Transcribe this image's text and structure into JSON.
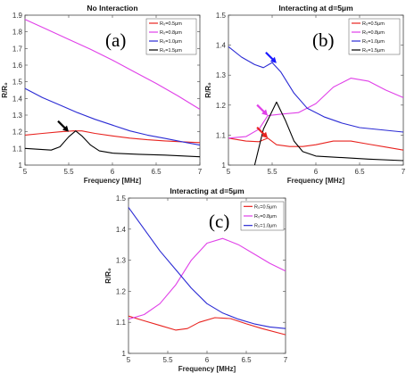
{
  "chart_data": [
    {
      "type": "line",
      "panel_label": "(a)",
      "title": "No Interaction",
      "xlabel": "Frequency [MHz]",
      "ylabel": "R/R₀",
      "xlim": [
        5,
        7
      ],
      "ylim": [
        1.0,
        1.9
      ],
      "xticks": [
        "5",
        "5.5",
        "6",
        "6.5",
        "7"
      ],
      "yticks": [
        "1",
        "1.1",
        "1.2",
        "1.3",
        "1.4",
        "1.5",
        "1.6",
        "1.7",
        "1.8",
        "1.9"
      ],
      "legend_position": "top-right",
      "series": [
        {
          "name": "R₀=0.5μm",
          "color": "#e8231f",
          "points": [
            [
              5.0,
              1.18
            ],
            [
              5.2,
              1.19
            ],
            [
              5.4,
              1.2
            ],
            [
              5.55,
              1.205
            ],
            [
              5.65,
              1.205
            ],
            [
              5.8,
              1.19
            ],
            [
              6.0,
              1.175
            ],
            [
              6.2,
              1.162
            ],
            [
              6.4,
              1.152
            ],
            [
              6.6,
              1.145
            ],
            [
              6.8,
              1.14
            ],
            [
              7.0,
              1.135
            ]
          ]
        },
        {
          "name": "R₀=0.8μm",
          "color": "#e040e8",
          "points": [
            [
              5.0,
              1.875
            ],
            [
              5.25,
              1.815
            ],
            [
              5.5,
              1.755
            ],
            [
              5.75,
              1.695
            ],
            [
              6.0,
              1.63
            ],
            [
              6.25,
              1.56
            ],
            [
              6.5,
              1.49
            ],
            [
              6.75,
              1.415
            ],
            [
              7.0,
              1.335
            ]
          ]
        },
        {
          "name": "R₀=1.0μm",
          "color": "#2b2bd4",
          "points": [
            [
              5.0,
              1.46
            ],
            [
              5.2,
              1.405
            ],
            [
              5.4,
              1.36
            ],
            [
              5.6,
              1.315
            ],
            [
              5.8,
              1.275
            ],
            [
              6.0,
              1.24
            ],
            [
              6.2,
              1.205
            ],
            [
              6.4,
              1.18
            ],
            [
              6.6,
              1.16
            ],
            [
              6.8,
              1.14
            ],
            [
              7.0,
              1.12
            ]
          ]
        },
        {
          "name": "R₀=1.5μm",
          "color": "#000000",
          "points": [
            [
              5.0,
              1.1
            ],
            [
              5.3,
              1.09
            ],
            [
              5.4,
              1.11
            ],
            [
              5.5,
              1.17
            ],
            [
              5.58,
              1.205
            ],
            [
              5.65,
              1.175
            ],
            [
              5.75,
              1.12
            ],
            [
              5.85,
              1.085
            ],
            [
              6.0,
              1.072
            ],
            [
              6.3,
              1.065
            ],
            [
              6.6,
              1.06
            ],
            [
              7.0,
              1.05
            ]
          ]
        }
      ],
      "arrows": [
        {
          "color": "#000000",
          "points_to": [
            5.5,
            1.2
          ]
        }
      ]
    },
    {
      "type": "line",
      "panel_label": "(b)",
      "title": "Interacting at d=5μm",
      "xlabel": "Frequency [MHz]",
      "ylabel": "R/R₀",
      "xlim": [
        5,
        7
      ],
      "ylim": [
        1.0,
        1.5
      ],
      "xticks": [
        "5",
        "5.5",
        "6",
        "6.5",
        "7"
      ],
      "yticks": [
        "1",
        "1.1",
        "1.2",
        "1.3",
        "1.4",
        "1.5"
      ],
      "legend_position": "top-right",
      "series": [
        {
          "name": "R₀=0.5μm",
          "color": "#e8231f",
          "points": [
            [
              5.0,
              1.09
            ],
            [
              5.2,
              1.08
            ],
            [
              5.35,
              1.078
            ],
            [
              5.45,
              1.09
            ],
            [
              5.55,
              1.068
            ],
            [
              5.7,
              1.062
            ],
            [
              5.85,
              1.062
            ],
            [
              6.0,
              1.068
            ],
            [
              6.2,
              1.08
            ],
            [
              6.4,
              1.08
            ],
            [
              6.6,
              1.07
            ],
            [
              6.8,
              1.06
            ],
            [
              7.0,
              1.05
            ]
          ]
        },
        {
          "name": "R₀=0.8μm",
          "color": "#e040e8",
          "points": [
            [
              5.0,
              1.09
            ],
            [
              5.2,
              1.095
            ],
            [
              5.35,
              1.12
            ],
            [
              5.45,
              1.165
            ],
            [
              5.6,
              1.17
            ],
            [
              5.8,
              1.175
            ],
            [
              6.0,
              1.205
            ],
            [
              6.2,
              1.26
            ],
            [
              6.4,
              1.29
            ],
            [
              6.6,
              1.28
            ],
            [
              6.8,
              1.25
            ],
            [
              7.0,
              1.225
            ]
          ]
        },
        {
          "name": "R₀=1.0μm",
          "color": "#2b2bd4",
          "points": [
            [
              5.0,
              1.395
            ],
            [
              5.15,
              1.36
            ],
            [
              5.3,
              1.335
            ],
            [
              5.4,
              1.325
            ],
            [
              5.5,
              1.342
            ],
            [
              5.6,
              1.31
            ],
            [
              5.75,
              1.24
            ],
            [
              5.9,
              1.19
            ],
            [
              6.1,
              1.16
            ],
            [
              6.3,
              1.14
            ],
            [
              6.5,
              1.125
            ],
            [
              7.0,
              1.11
            ]
          ]
        },
        {
          "name": "R₀=1.5μm",
          "color": "#000000",
          "points": [
            [
              5.3,
              1.0
            ],
            [
              5.4,
              1.12
            ],
            [
              5.55,
              1.21
            ],
            [
              5.65,
              1.15
            ],
            [
              5.75,
              1.08
            ],
            [
              5.85,
              1.045
            ],
            [
              6.0,
              1.03
            ],
            [
              6.3,
              1.025
            ],
            [
              6.6,
              1.02
            ],
            [
              7.0,
              1.015
            ]
          ]
        }
      ],
      "arrows": [
        {
          "color": "#1a1aff",
          "points_to": [
            5.55,
            1.34
          ]
        },
        {
          "color": "#e040e8",
          "points_to": [
            5.45,
            1.165
          ]
        },
        {
          "color": "#e8231f",
          "points_to": [
            5.45,
            1.09
          ]
        }
      ]
    },
    {
      "type": "line",
      "panel_label": "(c)",
      "title": "Interacting at d=5μm",
      "xlabel": "Frequency [MHz]",
      "ylabel": "R/R₀",
      "xlim": [
        5,
        7
      ],
      "ylim": [
        1.0,
        1.5
      ],
      "xticks": [
        "5",
        "5.5",
        "6",
        "6.5",
        "7"
      ],
      "yticks": [
        "1",
        "1.1",
        "1.2",
        "1.3",
        "1.4",
        "1.5"
      ],
      "legend_position": "top-right",
      "series": [
        {
          "name": "R₀=0.5μm",
          "color": "#e8231f",
          "points": [
            [
              5.0,
              1.12
            ],
            [
              5.2,
              1.105
            ],
            [
              5.4,
              1.09
            ],
            [
              5.6,
              1.075
            ],
            [
              5.75,
              1.08
            ],
            [
              5.9,
              1.1
            ],
            [
              6.1,
              1.115
            ],
            [
              6.3,
              1.112
            ],
            [
              6.5,
              1.095
            ],
            [
              6.7,
              1.08
            ],
            [
              7.0,
              1.06
            ]
          ]
        },
        {
          "name": "R₀=0.8μm",
          "color": "#e040e8",
          "points": [
            [
              5.0,
              1.11
            ],
            [
              5.2,
              1.125
            ],
            [
              5.4,
              1.16
            ],
            [
              5.6,
              1.22
            ],
            [
              5.8,
              1.3
            ],
            [
              6.0,
              1.355
            ],
            [
              6.2,
              1.37
            ],
            [
              6.4,
              1.35
            ],
            [
              6.6,
              1.32
            ],
            [
              6.8,
              1.29
            ],
            [
              7.0,
              1.265
            ]
          ]
        },
        {
          "name": "R₀=1.0μm",
          "color": "#2b2bd4",
          "points": [
            [
              5.0,
              1.47
            ],
            [
              5.2,
              1.4
            ],
            [
              5.4,
              1.33
            ],
            [
              5.6,
              1.27
            ],
            [
              5.8,
              1.21
            ],
            [
              6.0,
              1.16
            ],
            [
              6.2,
              1.13
            ],
            [
              6.4,
              1.11
            ],
            [
              6.6,
              1.095
            ],
            [
              6.8,
              1.085
            ],
            [
              7.0,
              1.08
            ]
          ]
        }
      ],
      "arrows": []
    }
  ]
}
